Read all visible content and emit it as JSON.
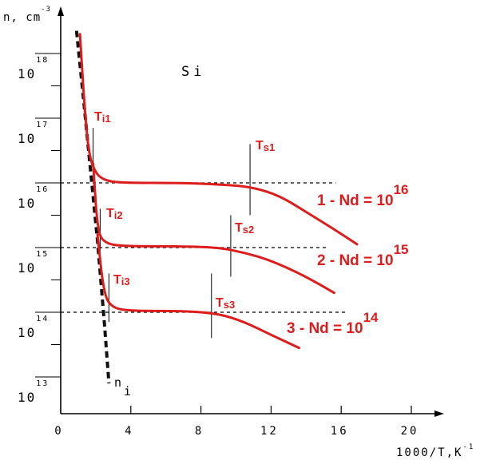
{
  "chart_data": {
    "type": "line",
    "title": "",
    "material_label": "Si",
    "xlabel": "1000/T,K",
    "xlabel_exp": "-1",
    "ylabel": "n, cm",
    "ylabel_exp": "-3",
    "xlim": [
      0,
      21.5
    ],
    "ylim": [
      12.6,
      18.45
    ],
    "x_ticks": [
      "0",
      "4",
      "8",
      "12",
      "16",
      "20"
    ],
    "y_ticks": [
      {
        "mantissa": "10",
        "exponent": "13",
        "value": 13
      },
      {
        "mantissa": "10",
        "exponent": "14",
        "value": 14
      },
      {
        "mantissa": "10",
        "exponent": "15",
        "value": 15
      },
      {
        "mantissa": "10",
        "exponent": "16",
        "value": 16
      },
      {
        "mantissa": "10",
        "exponent": "17",
        "value": 17
      },
      {
        "mantissa": "10",
        "exponent": "18",
        "value": 18
      }
    ],
    "colors": {
      "series": "#dd1c1c",
      "intrinsic": "#111111",
      "axes": "#000000"
    },
    "intrinsic": {
      "name": "n",
      "name_sub": "i",
      "points": [
        [
          0.9,
          18.35
        ],
        [
          1.3,
          17.3
        ],
        [
          1.7,
          16.2
        ],
        [
          2.1,
          15.1
        ],
        [
          2.5,
          13.8
        ],
        [
          2.75,
          12.9
        ]
      ]
    },
    "series": [
      {
        "label_prefix": "1 -  Nd = ",
        "label_base": "10",
        "label_exp": "16",
        "points": [
          [
            1.1,
            18.3
          ],
          [
            1.35,
            17.2
          ],
          [
            1.6,
            16.45
          ],
          [
            1.95,
            16.17
          ],
          [
            2.4,
            16.05
          ],
          [
            3.3,
            16.0
          ],
          [
            7.0,
            16.0
          ],
          [
            9.5,
            15.97
          ],
          [
            11.0,
            15.93
          ],
          [
            12.5,
            15.8
          ],
          [
            14.0,
            15.55
          ],
          [
            15.5,
            15.3
          ],
          [
            16.9,
            15.05
          ]
        ],
        "ref_line_y": 16,
        "ref_line_xrange": [
          0,
          15.7
        ],
        "Ti_label": "Ti1",
        "Ti_x": 1.85,
        "Ti_marker_y": [
          16.2,
          16.85
        ],
        "Ts_label": "Ts1",
        "Ts_x": 10.8,
        "Ts_marker_y": [
          15.5,
          16.6
        ]
      },
      {
        "label_prefix": "2 -  Nd = ",
        "label_base": "10",
        "label_exp": "15",
        "points": [
          [
            1.85,
            16.3
          ],
          [
            2.1,
            15.25
          ],
          [
            2.5,
            15.07
          ],
          [
            3.5,
            15.02
          ],
          [
            7.0,
            15.02
          ],
          [
            9.0,
            15.0
          ],
          [
            10.5,
            14.92
          ],
          [
            12.0,
            14.8
          ],
          [
            14.0,
            14.55
          ],
          [
            15.6,
            14.3
          ]
        ],
        "ref_line_y": 15,
        "ref_line_xrange": [
          0,
          15.2
        ],
        "Ti_label": "Ti2",
        "Ti_x": 2.25,
        "Ti_marker_y": [
          14.9,
          15.6
        ],
        "Ts_label": "Ts2",
        "Ts_x": 9.7,
        "Ts_marker_y": [
          14.55,
          15.5
        ]
      },
      {
        "label_prefix": "3 - Nd = ",
        "label_base": "10",
        "label_exp": "14",
        "points": [
          [
            2.1,
            15.2
          ],
          [
            2.45,
            14.3
          ],
          [
            2.9,
            14.07
          ],
          [
            4.0,
            14.02
          ],
          [
            7.0,
            14.02
          ],
          [
            9.0,
            13.98
          ],
          [
            10.5,
            13.85
          ],
          [
            12.0,
            13.65
          ],
          [
            13.6,
            13.45
          ]
        ],
        "ref_line_y": 14,
        "ref_line_xrange": [
          0,
          16.3
        ],
        "Ti_label": "Ti3",
        "Ti_x": 2.75,
        "Ti_marker_y": [
          13.85,
          14.6
        ],
        "Ts_label": "Ts3",
        "Ts_x": 8.6,
        "Ts_marker_y": [
          13.6,
          14.6
        ]
      }
    ]
  }
}
